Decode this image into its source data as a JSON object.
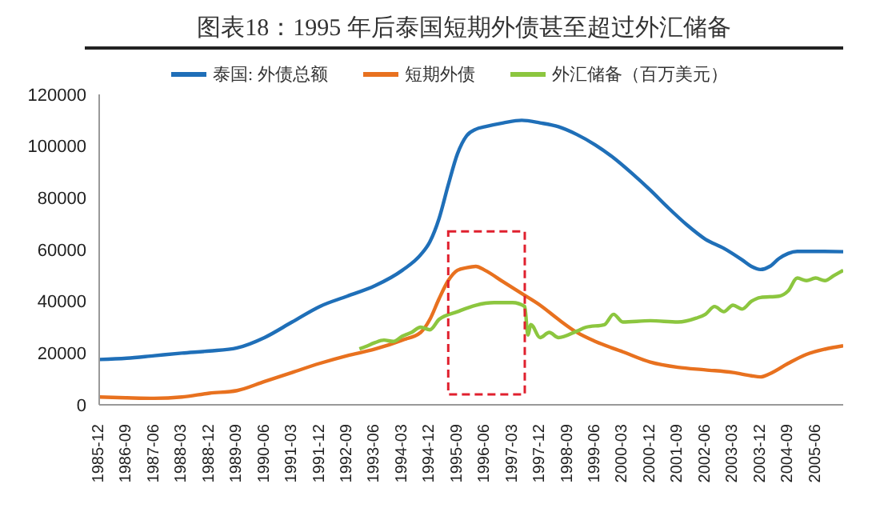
{
  "chart_data": {
    "type": "line",
    "title": "图表18：1995 年后泰国短期外债甚至超过外汇储备",
    "xlim": [
      "1985-12",
      "2006-03"
    ],
    "xticks": [
      "1985-12",
      "1986-09",
      "1987-06",
      "1988-03",
      "1988-12",
      "1989-09",
      "1990-06",
      "1991-03",
      "1991-12",
      "1992-09",
      "1993-06",
      "1994-03",
      "1994-12",
      "1995-09",
      "1996-06",
      "1997-03",
      "1997-12",
      "1998-09",
      "1999-06",
      "2000-03",
      "2000-12",
      "2001-09",
      "2002-06",
      "2003-03",
      "2003-12",
      "2004-09",
      "2005-06"
    ],
    "ylim": [
      0,
      120000
    ],
    "yticks": [
      0,
      20000,
      40000,
      60000,
      80000,
      100000,
      120000
    ],
    "grid": false,
    "legend": "top",
    "marker": "none",
    "line_style": "solid",
    "series": [
      {
        "name": "泰国: 外债总额",
        "color": "#1f6fb8",
        "x": [
          "1985-12",
          "1986-09",
          "1987-06",
          "1988-03",
          "1988-12",
          "1989-09",
          "1990-06",
          "1991-03",
          "1991-12",
          "1992-09",
          "1993-06",
          "1994-03",
          "1994-09",
          "1994-12",
          "1995-03",
          "1995-06",
          "1995-09",
          "1995-12",
          "1996-03",
          "1996-06",
          "1996-12",
          "1997-06",
          "1997-12",
          "1998-06",
          "1998-12",
          "1999-06",
          "1999-12",
          "2000-06",
          "2000-12",
          "2001-06",
          "2001-12",
          "2002-06",
          "2002-12",
          "2003-06",
          "2003-09",
          "2003-12",
          "2004-03",
          "2004-06",
          "2004-09",
          "2004-12",
          "2005-06",
          "2006-03"
        ],
        "values": [
          17500,
          18000,
          19000,
          20000,
          20800,
          22000,
          26000,
          32000,
          38000,
          42000,
          46000,
          52000,
          58000,
          63000,
          72000,
          85000,
          97000,
          104000,
          106500,
          107500,
          109000,
          110000,
          109000,
          107500,
          104500,
          100500,
          95500,
          89500,
          83000,
          76000,
          69500,
          64000,
          60500,
          56000,
          53500,
          52300,
          53500,
          56500,
          58500,
          59300,
          59300,
          59200
        ]
      },
      {
        "name": "短期外债",
        "color": "#e8711f",
        "x": [
          "1985-12",
          "1986-09",
          "1987-06",
          "1988-03",
          "1988-12",
          "1989-09",
          "1990-06",
          "1991-03",
          "1991-12",
          "1992-09",
          "1993-06",
          "1994-03",
          "1994-09",
          "1994-12",
          "1995-03",
          "1995-06",
          "1995-09",
          "1995-12",
          "1996-03",
          "1996-06",
          "1996-12",
          "1997-06",
          "1997-12",
          "1998-06",
          "1998-12",
          "1999-06",
          "2000-03",
          "2000-12",
          "2001-09",
          "2002-06",
          "2003-03",
          "2003-09",
          "2003-12",
          "2004-03",
          "2004-09",
          "2005-03",
          "2005-09",
          "2006-03"
        ],
        "values": [
          3000,
          2700,
          2500,
          3000,
          4500,
          5500,
          9000,
          12500,
          16000,
          19000,
          21500,
          25000,
          28000,
          33000,
          41000,
          48000,
          52000,
          53000,
          53500,
          52000,
          47500,
          43000,
          38500,
          33000,
          28000,
          24500,
          20500,
          16500,
          14500,
          13500,
          12500,
          11200,
          10800,
          12000,
          16000,
          19500,
          21500,
          22800
        ]
      },
      {
        "name": "外汇储备（百万美元）",
        "color": "#8cc63f",
        "x": [
          "1993-01",
          "1993-03",
          "1993-06",
          "1993-09",
          "1993-12",
          "1994-03",
          "1994-06",
          "1994-09",
          "1994-12",
          "1995-03",
          "1995-09",
          "1996-03",
          "1996-09",
          "1997-03",
          "1997-07",
          "1997-08",
          "1997-09",
          "1997-12",
          "1998-03",
          "1998-06",
          "1998-12",
          "1999-03",
          "1999-09",
          "1999-12",
          "2000-03",
          "2000-12",
          "2001-09",
          "2002-03",
          "2002-06",
          "2002-09",
          "2002-12",
          "2003-03",
          "2003-06",
          "2003-09",
          "2003-12",
          "2004-06",
          "2004-09",
          "2004-12",
          "2005-03",
          "2005-06",
          "2005-09",
          "2005-12",
          "2006-03"
        ],
        "values": [
          21600,
          22500,
          24000,
          25000,
          24500,
          26500,
          28000,
          30000,
          29000,
          33000,
          36000,
          38500,
          39500,
          39500,
          38000,
          27000,
          31000,
          26000,
          28000,
          26000,
          28500,
          30000,
          31000,
          35000,
          32000,
          32500,
          32000,
          33500,
          35000,
          38000,
          36000,
          38500,
          37000,
          40000,
          41500,
          42000,
          44000,
          49000,
          48000,
          49000,
          48000,
          50000,
          52000
        ]
      }
    ]
  }
}
